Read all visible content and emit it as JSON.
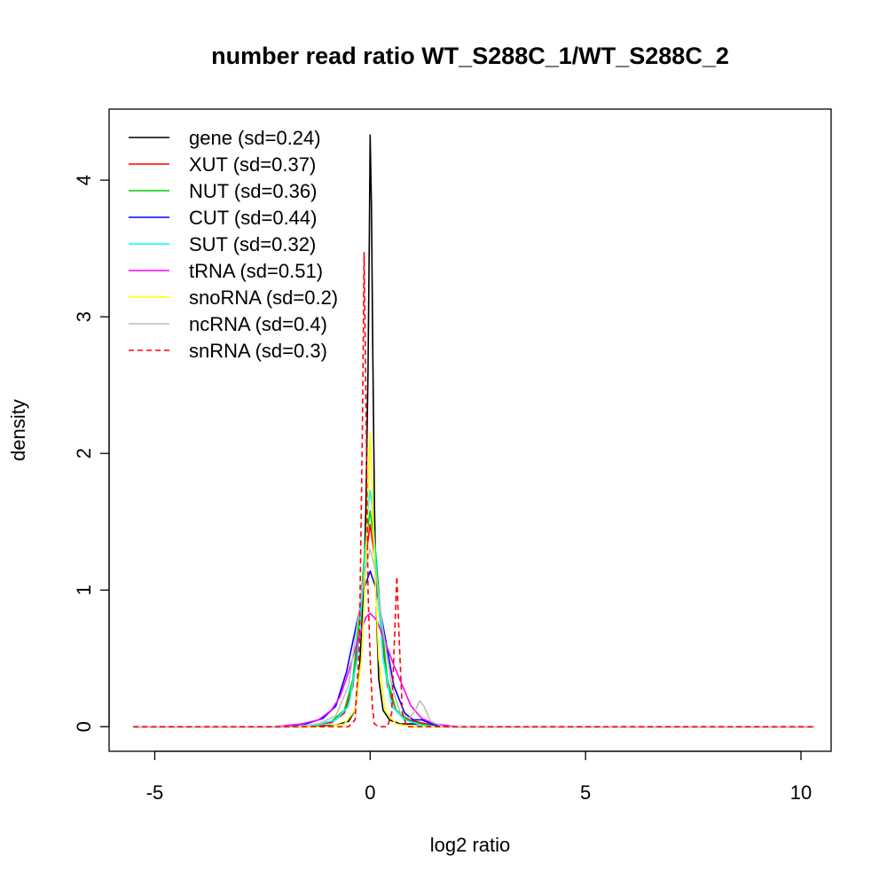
{
  "chart_data": {
    "type": "line",
    "title": "number read ratio WT_S288C_1/WT_S288C_2",
    "xlabel": "log2 ratio",
    "ylabel": "density",
    "xlim": [
      -6.06,
      10.7
    ],
    "ylim": [
      -0.18,
      4.52
    ],
    "xticks": [
      -5,
      0,
      5,
      10
    ],
    "xtick_labels": [
      "-5",
      "0",
      "5",
      "10"
    ],
    "yticks": [
      0,
      1,
      2,
      3,
      4
    ],
    "ytick_labels": [
      "0",
      "1",
      "2",
      "3",
      "4"
    ],
    "grid": false,
    "legend_position": "top-left",
    "series": [
      {
        "name": "gene (sd=0.24)",
        "color": "#000000",
        "dash": "solid",
        "points": [
          [
            -5.5,
            0
          ],
          [
            -1.5,
            0
          ],
          [
            -0.8,
            0.01
          ],
          [
            -0.5,
            0.04
          ],
          [
            -0.35,
            0.12
          ],
          [
            -0.25,
            0.4
          ],
          [
            -0.15,
            1.0
          ],
          [
            -0.1,
            1.6
          ],
          [
            -0.05,
            2.6
          ],
          [
            -0.02,
            3.6
          ],
          [
            0.0,
            4.33
          ],
          [
            0.03,
            3.8
          ],
          [
            0.06,
            2.8
          ],
          [
            0.1,
            1.6
          ],
          [
            0.15,
            0.8
          ],
          [
            0.2,
            0.35
          ],
          [
            0.3,
            0.12
          ],
          [
            0.45,
            0.05
          ],
          [
            0.7,
            0.02
          ],
          [
            1.0,
            0.02
          ],
          [
            1.3,
            0.01
          ],
          [
            1.6,
            0
          ],
          [
            10.3,
            0
          ]
        ]
      },
      {
        "name": "XUT (sd=0.37)",
        "color": "#ff0000",
        "dash": "solid",
        "points": [
          [
            -5.5,
            0
          ],
          [
            -2.0,
            0
          ],
          [
            -1.4,
            0.01
          ],
          [
            -0.9,
            0.03
          ],
          [
            -0.6,
            0.1
          ],
          [
            -0.4,
            0.3
          ],
          [
            -0.25,
            0.7
          ],
          [
            -0.12,
            1.2
          ],
          [
            0.0,
            1.48
          ],
          [
            0.12,
            1.2
          ],
          [
            0.25,
            0.7
          ],
          [
            0.4,
            0.3
          ],
          [
            0.6,
            0.12
          ],
          [
            0.9,
            0.05
          ],
          [
            1.3,
            0.02
          ],
          [
            1.8,
            0
          ],
          [
            10.3,
            0
          ]
        ]
      },
      {
        "name": "NUT (sd=0.36)",
        "color": "#00cd00",
        "dash": "solid",
        "points": [
          [
            -5.5,
            0
          ],
          [
            -1.9,
            0
          ],
          [
            -1.4,
            0.01
          ],
          [
            -0.9,
            0.04
          ],
          [
            -0.6,
            0.12
          ],
          [
            -0.4,
            0.35
          ],
          [
            -0.25,
            0.8
          ],
          [
            -0.12,
            1.3
          ],
          [
            0.0,
            1.58
          ],
          [
            0.12,
            1.3
          ],
          [
            0.25,
            0.8
          ],
          [
            0.4,
            0.35
          ],
          [
            0.6,
            0.12
          ],
          [
            0.9,
            0.04
          ],
          [
            1.3,
            0.01
          ],
          [
            1.8,
            0
          ],
          [
            10.3,
            0
          ]
        ]
      },
      {
        "name": "CUT (sd=0.44)",
        "color": "#0000ff",
        "dash": "solid",
        "points": [
          [
            -5.5,
            0
          ],
          [
            -2.0,
            0
          ],
          [
            -1.5,
            0.02
          ],
          [
            -1.1,
            0.06
          ],
          [
            -0.8,
            0.15
          ],
          [
            -0.55,
            0.4
          ],
          [
            -0.35,
            0.7
          ],
          [
            -0.15,
            1.0
          ],
          [
            0.0,
            1.14
          ],
          [
            0.15,
            1.0
          ],
          [
            0.35,
            0.65
          ],
          [
            0.55,
            0.3
          ],
          [
            0.8,
            0.1
          ],
          [
            1.0,
            0.05
          ],
          [
            1.2,
            0.05
          ],
          [
            1.5,
            0.01
          ],
          [
            1.9,
            0
          ],
          [
            10.3,
            0
          ]
        ]
      },
      {
        "name": "SUT (sd=0.32)",
        "color": "#00ffff",
        "dash": "solid",
        "points": [
          [
            -5.5,
            0
          ],
          [
            -1.8,
            0
          ],
          [
            -1.3,
            0.01
          ],
          [
            -0.8,
            0.05
          ],
          [
            -0.5,
            0.15
          ],
          [
            -0.3,
            0.5
          ],
          [
            -0.15,
            1.1
          ],
          [
            -0.05,
            1.6
          ],
          [
            0.0,
            1.73
          ],
          [
            0.05,
            1.6
          ],
          [
            0.15,
            1.1
          ],
          [
            0.3,
            0.5
          ],
          [
            0.5,
            0.15
          ],
          [
            0.8,
            0.05
          ],
          [
            1.2,
            0.01
          ],
          [
            1.6,
            0
          ],
          [
            10.3,
            0
          ]
        ]
      },
      {
        "name": "tRNA (sd=0.51)",
        "color": "#ff00ff",
        "dash": "solid",
        "points": [
          [
            -5.5,
            0
          ],
          [
            -2.2,
            0
          ],
          [
            -1.6,
            0.02
          ],
          [
            -1.2,
            0.05
          ],
          [
            -0.9,
            0.12
          ],
          [
            -0.7,
            0.22
          ],
          [
            -0.5,
            0.4
          ],
          [
            -0.3,
            0.62
          ],
          [
            -0.1,
            0.8
          ],
          [
            0.0,
            0.83
          ],
          [
            0.15,
            0.78
          ],
          [
            0.35,
            0.62
          ],
          [
            0.55,
            0.45
          ],
          [
            0.75,
            0.3
          ],
          [
            0.95,
            0.15
          ],
          [
            1.2,
            0.06
          ],
          [
            1.5,
            0.02
          ],
          [
            2.0,
            0
          ],
          [
            10.3,
            0
          ]
        ]
      },
      {
        "name": "snoRNA (sd=0.2)",
        "color": "#ffff00",
        "dash": "solid",
        "points": [
          [
            -5.5,
            0
          ],
          [
            -1.0,
            0
          ],
          [
            -0.6,
            0.02
          ],
          [
            -0.35,
            0.12
          ],
          [
            -0.2,
            0.5
          ],
          [
            -0.1,
            1.2
          ],
          [
            -0.03,
            1.9
          ],
          [
            0.0,
            2.15
          ],
          [
            0.03,
            1.9
          ],
          [
            0.1,
            1.2
          ],
          [
            0.2,
            0.5
          ],
          [
            0.35,
            0.12
          ],
          [
            0.6,
            0.02
          ],
          [
            1.0,
            0
          ],
          [
            10.3,
            0
          ]
        ]
      },
      {
        "name": "ncRNA (sd=0.4)",
        "color": "#bebebe",
        "dash": "solid",
        "points": [
          [
            -5.5,
            0
          ],
          [
            -1.8,
            0
          ],
          [
            -1.2,
            0.02
          ],
          [
            -0.8,
            0.08
          ],
          [
            -0.5,
            0.3
          ],
          [
            -0.3,
            0.75
          ],
          [
            -0.12,
            1.15
          ],
          [
            0.0,
            1.3
          ],
          [
            0.12,
            1.15
          ],
          [
            0.3,
            0.7
          ],
          [
            0.5,
            0.3
          ],
          [
            0.7,
            0.1
          ],
          [
            0.9,
            0.06
          ],
          [
            1.05,
            0.12
          ],
          [
            1.15,
            0.19
          ],
          [
            1.25,
            0.15
          ],
          [
            1.4,
            0.04
          ],
          [
            1.7,
            0
          ],
          [
            10.3,
            0
          ]
        ]
      },
      {
        "name": "snRNA (sd=0.3)",
        "color": "#ff0000",
        "dash": "dashed",
        "points": [
          [
            -5.5,
            0
          ],
          [
            -0.5,
            0
          ],
          [
            -0.35,
            0.05
          ],
          [
            -0.25,
            0.6
          ],
          [
            -0.18,
            2.2
          ],
          [
            -0.14,
            3.47
          ],
          [
            -0.1,
            2.4
          ],
          [
            -0.05,
            1.0
          ],
          [
            0.0,
            0.5
          ],
          [
            0.05,
            0.15
          ],
          [
            0.1,
            0.02
          ],
          [
            0.2,
            0
          ],
          [
            0.4,
            0
          ],
          [
            0.5,
            0.1
          ],
          [
            0.56,
            0.6
          ],
          [
            0.62,
            1.1
          ],
          [
            0.68,
            0.6
          ],
          [
            0.75,
            0.1
          ],
          [
            0.85,
            0
          ],
          [
            10.3,
            0
          ]
        ]
      }
    ]
  }
}
